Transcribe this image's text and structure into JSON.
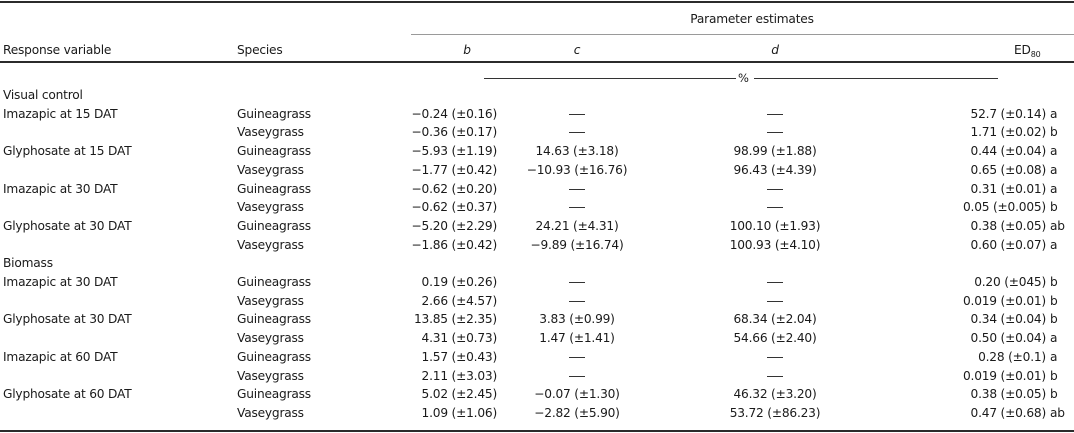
{
  "table": {
    "header": {
      "group_label": "Parameter estimates",
      "columns": {
        "response": "Response variable",
        "species": "Species",
        "b": "b",
        "c": "c",
        "d": "d",
        "ed_main": "ED",
        "ed_sub": "80"
      },
      "unit_label": "%"
    },
    "sections": [
      {
        "title": "Visual control",
        "rows": [
          {
            "response": "Imazapic at 15 DAT",
            "species": "Guineagrass",
            "b": "−0.24 (±0.16)",
            "c": "",
            "d": "",
            "ed": "52.7 (±0.14)",
            "ed_letter": "a"
          },
          {
            "response": "",
            "species": "Vaseygrass",
            "b": "−0.36 (±0.17)",
            "c": "",
            "d": "",
            "ed": "1.71 (±0.02)",
            "ed_letter": "b"
          },
          {
            "response": "Glyphosate at 15 DAT",
            "species": "Guineagrass",
            "b": "−5.93 (±1.19)",
            "c": "14.63 (±3.18)",
            "d": "98.99 (±1.88)",
            "ed": "0.44 (±0.04)",
            "ed_letter": "a"
          },
          {
            "response": "",
            "species": "Vaseygrass",
            "b": "−1.77 (±0.42)",
            "c": "−10.93 (±16.76)",
            "d": "96.43 (±4.39)",
            "ed": "0.65 (±0.08)",
            "ed_letter": "a"
          },
          {
            "response": "Imazapic at 30 DAT",
            "species": "Guineagrass",
            "b": "−0.62 (±0.20)",
            "c": "",
            "d": "",
            "ed": "0.31 (±0.01)",
            "ed_letter": "a"
          },
          {
            "response": "",
            "species": "Vaseygrass",
            "b": "−0.62 (±0.37)",
            "c": "",
            "d": "",
            "ed": "0.05 (±0.005)",
            "ed_letter": "b"
          },
          {
            "response": "Glyphosate at 30 DAT",
            "species": "Guineagrass",
            "b": "−5.20 (±2.29)",
            "c": "24.21 (±4.31)",
            "d": "100.10 (±1.93)",
            "ed": "0.38 (±0.05)",
            "ed_letter": "ab"
          },
          {
            "response": "",
            "species": "Vaseygrass",
            "b": "−1.86 (±0.42)",
            "c": "−9.89 (±16.74)",
            "d": "100.93 (±4.10)",
            "ed": "0.60 (±0.07)",
            "ed_letter": "a"
          }
        ]
      },
      {
        "title": "Biomass",
        "rows": [
          {
            "response": "Imazapic at 30 DAT",
            "species": "Guineagrass",
            "b": "0.19 (±0.26)",
            "c": "",
            "d": "",
            "ed": "0.20 (±045)",
            "ed_letter": "b"
          },
          {
            "response": "",
            "species": "Vaseygrass",
            "b": "2.66 (±4.57)",
            "c": "",
            "d": "",
            "ed": "0.019 (±0.01)",
            "ed_letter": "b"
          },
          {
            "response": "Glyphosate at 30 DAT",
            "species": "Guineagrass",
            "b": "13.85 (±2.35)",
            "c": "3.83 (±0.99)",
            "d": "68.34 (±2.04)",
            "ed": "0.34 (±0.04)",
            "ed_letter": "b"
          },
          {
            "response": "",
            "species": "Vaseygrass",
            "b": "4.31 (±0.73)",
            "c": "1.47 (±1.41)",
            "d": "54.66 (±2.40)",
            "ed": "0.50 (±0.04)",
            "ed_letter": "a"
          },
          {
            "response": "Imazapic at 60 DAT",
            "species": "Guineagrass",
            "b": "1.57 (±0.43)",
            "c": "",
            "d": "",
            "ed": "0.28 (±0.1)",
            "ed_letter": "a"
          },
          {
            "response": "",
            "species": "Vaseygrass",
            "b": "2.11 (±3.03)",
            "c": "",
            "d": "",
            "ed": "0.019 (±0.01)",
            "ed_letter": "b"
          },
          {
            "response": "Glyphosate at 60 DAT",
            "species": "Guineagrass",
            "b": "5.02 (±2.45)",
            "c": "−0.07 (±1.30)",
            "d": "46.32 (±3.20)",
            "ed": "0.38 (±0.05)",
            "ed_letter": "b"
          },
          {
            "response": "",
            "species": "Vaseygrass",
            "b": "1.09 (±1.06)",
            "c": "−2.82 (±5.90)",
            "d": "53.72 (±86.23)",
            "ed": "0.47 (±0.68)",
            "ed_letter": "ab"
          }
        ]
      }
    ]
  }
}
